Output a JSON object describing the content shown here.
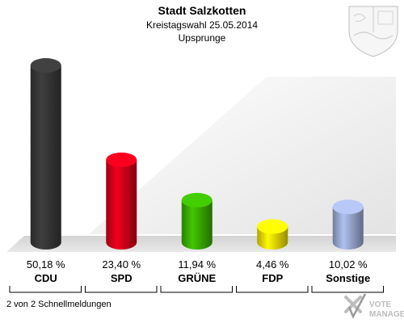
{
  "header": {
    "title": "Stadt Salzkotten",
    "subtitle": "Kreistagswahl 25.05.2014",
    "region": "Upsprunge"
  },
  "footer": {
    "status": "2 von 2 Schnellmeldungen",
    "brand_line1": "VOTE",
    "brand_line2": "MANAGER"
  },
  "icons": {
    "coat_of_arms": "coat-of-arms-icon",
    "brand_logo": "vote-manager-logo"
  },
  "chart_data": {
    "type": "bar",
    "title": "Stadt Salzkotten",
    "subtitle": "Kreistagswahl 25.05.2014",
    "categories": [
      "CDU",
      "SPD",
      "GRÜNE",
      "FDP",
      "Sonstige"
    ],
    "values": [
      50.18,
      23.4,
      11.94,
      4.46,
      10.02
    ],
    "value_labels": [
      "50,18 %",
      "23,40 %",
      "11,94 %",
      "4,46 %",
      "10,02 %"
    ],
    "colors": [
      "#3a3a3a",
      "#e0001b",
      "#3cb800",
      "#ffe800",
      "#a3b3de"
    ],
    "ylim": [
      0,
      55
    ],
    "grid": false,
    "legend": "none"
  }
}
